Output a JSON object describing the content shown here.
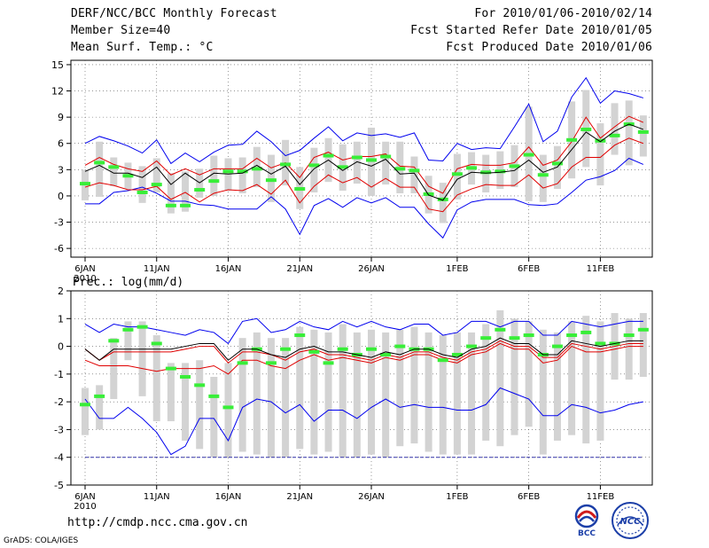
{
  "header": {
    "title": "DERF/NCC/BCC Monthly Forecast",
    "member_size": "Member Size=40",
    "variable": "Mean Surf. Temp.: °C",
    "period": "For 2010/01/06-2010/02/14",
    "started": "Fcst Started Refer Date 2010/01/05",
    "produced": "Fcst Produced Date 2010/01/06"
  },
  "footer": {
    "url": "http://cmdp.ncc.cma.gov.cn",
    "credit": "GrADS: COLA/IGES"
  },
  "logos": {
    "bcc": "BCC",
    "ncc": "NCC"
  },
  "colors": {
    "box": "#d3d3d3",
    "median": "#38ee38",
    "mean": "#000000",
    "spread": "#e00000",
    "extreme": "#0000ee"
  },
  "chart_data": [
    {
      "type": "line",
      "title": "Mean Surf. Temp.: °C",
      "x_tick_labels": [
        "6JAN",
        "11JAN",
        "16JAN",
        "21JAN",
        "26JAN",
        "1FEB",
        "6FEB",
        "11FEB"
      ],
      "x_tick_index": [
        0,
        5,
        10,
        15,
        20,
        26,
        31,
        36
      ],
      "year_label": "2010",
      "ylim": [
        -7,
        15.5
      ],
      "yticks": [
        15,
        12,
        9,
        6,
        3,
        0,
        -3,
        -6
      ],
      "grid": true,
      "series": {
        "max": [
          6,
          6.8,
          6.3,
          5.7,
          4.9,
          6.4,
          3.7,
          4.9,
          3.9,
          5,
          5.8,
          5.9,
          7.4,
          6.2,
          4.6,
          5.2,
          6.6,
          7.9,
          6.3,
          7.2,
          6.9,
          7.1,
          6.7,
          7.2,
          4.1,
          4,
          6,
          5.3,
          5.5,
          5.4,
          7.9,
          10.5,
          6.2,
          7.4,
          11.3,
          13.5,
          10.6,
          12,
          11.7,
          11.2
        ],
        "mean": [
          2.8,
          3.5,
          2.6,
          2.6,
          2.1,
          3.3,
          1.3,
          2.6,
          1.5,
          2.6,
          2.5,
          2.6,
          3.5,
          2.5,
          3.4,
          1.3,
          3.1,
          4.1,
          2.9,
          3.9,
          3.4,
          4.2,
          2.5,
          2.6,
          0.1,
          -0.5,
          1.9,
          2.7,
          2.6,
          2.7,
          2.9,
          4.1,
          2.7,
          3.3,
          5.3,
          7.3,
          6.2,
          7.4,
          8.2,
          7.6
        ],
        "sd_upper": [
          3.5,
          4.4,
          3.6,
          3.1,
          2.8,
          4,
          2.4,
          3.1,
          2.4,
          3.1,
          3.1,
          3.1,
          4.3,
          3.2,
          3.8,
          2.1,
          4.4,
          5,
          4.1,
          4.5,
          4.5,
          4.8,
          3.4,
          3.3,
          1.1,
          0.3,
          3.1,
          3.6,
          3.5,
          3.5,
          3.8,
          5.6,
          3.5,
          4.1,
          6.2,
          9,
          6.6,
          7.9,
          9.1,
          8.4
        ],
        "sd_lower": [
          1,
          1.5,
          1.2,
          0.7,
          0.7,
          1.1,
          -0.4,
          0.4,
          -0.7,
          0.3,
          0.7,
          0.6,
          1.3,
          0.2,
          1.8,
          -0.8,
          1.1,
          2.4,
          1.5,
          2.1,
          1,
          2,
          1,
          1,
          -1.5,
          -1.8,
          0.1,
          0.8,
          1.3,
          1.2,
          1.2,
          2.4,
          0.9,
          1.4,
          3.3,
          4.4,
          4.4,
          5.8,
          6.6,
          6
        ],
        "min": [
          -0.9,
          -0.9,
          0.4,
          0.6,
          1,
          0.3,
          -0.6,
          -0.6,
          -1,
          -1.1,
          -1.5,
          -1.5,
          -1.5,
          -0.1,
          -1.5,
          -4.4,
          -1.1,
          -0.3,
          -1.3,
          -0.2,
          -0.8,
          -0.2,
          -1.3,
          -1.3,
          -3.2,
          -4.8,
          -1.6,
          -0.7,
          -0.4,
          -0.4,
          -0.4,
          -1,
          -1.1,
          -0.9,
          0.4,
          1.8,
          2.2,
          2.9,
          4.3,
          3.6
        ],
        "median": [
          1.4,
          3.8,
          3.3,
          2.3,
          0.4,
          1.3,
          -1.1,
          -1.1,
          0.7,
          1.7,
          2.8,
          2.8,
          3.1,
          1.8,
          3.6,
          0.8,
          3.5,
          4.6,
          3.3,
          4.4,
          4.1,
          4.5,
          3.1,
          2.9,
          0.2,
          -0.4,
          2.5,
          3.2,
          2.7,
          2.8,
          3.4,
          4.7,
          2.4,
          3.7,
          6.4,
          7.6,
          6.3,
          6.9,
          8.2,
          7.3
        ],
        "box_top": [
          3,
          6.2,
          4.4,
          3.8,
          3.4,
          4.3,
          2.6,
          2.8,
          3.1,
          4.6,
          4.3,
          4.4,
          5.6,
          4.7,
          6.4,
          3.3,
          5.5,
          6.6,
          5.9,
          6.2,
          7.8,
          6.2,
          6.2,
          4.5,
          2.3,
          1.5,
          4.8,
          5,
          4.7,
          5.1,
          5.8,
          10.2,
          4.7,
          5.7,
          10.8,
          12.1,
          8.3,
          10.6,
          10.9,
          9.2
        ],
        "box_bot": [
          -0.5,
          -0.1,
          1.1,
          0.8,
          -0.8,
          0.4,
          -2,
          -1.8,
          -0.2,
          0,
          0.6,
          0.3,
          1,
          -0.7,
          1.2,
          -1.5,
          0.4,
          1.6,
          0.6,
          1.4,
          0,
          1.3,
          0.3,
          0.3,
          -2,
          -3.1,
          -0.4,
          1.3,
          0.4,
          0.8,
          1,
          -0.6,
          -0.7,
          0.8,
          2,
          3.3,
          1.2,
          4.7,
          3.5,
          4.5
        ]
      }
    },
    {
      "type": "line",
      "title": "Prec.: log(mm/d)",
      "x_tick_labels": [
        "6JAN",
        "11JAN",
        "16JAN",
        "21JAN",
        "26JAN",
        "1FEB",
        "6FEB",
        "11FEB"
      ],
      "x_tick_index": [
        0,
        5,
        10,
        15,
        20,
        26,
        31,
        36
      ],
      "year_label": "2010",
      "ylim": [
        -5,
        2
      ],
      "yticks": [
        2,
        1,
        0,
        -1,
        -2,
        -3,
        -4,
        -5
      ],
      "grid": true,
      "series": {
        "max": [
          0.8,
          0.5,
          0.8,
          0.7,
          0.7,
          0.6,
          0.5,
          0.4,
          0.6,
          0.5,
          0.1,
          0.9,
          1,
          0.5,
          0.6,
          0.9,
          0.7,
          0.6,
          0.9,
          0.7,
          0.9,
          0.7,
          0.6,
          0.8,
          0.8,
          0.4,
          0.5,
          0.9,
          0.9,
          0.7,
          0.9,
          0.9,
          0.4,
          0.4,
          0.9,
          0.8,
          0.7,
          0.8,
          0.9,
          0.9
        ],
        "mean": [
          -0.1,
          -0.5,
          -0.1,
          -0.1,
          -0.1,
          -0.1,
          -0.1,
          0,
          0.1,
          0.1,
          -0.5,
          -0.1,
          -0.1,
          -0.3,
          -0.4,
          -0.1,
          0,
          -0.2,
          -0.2,
          -0.3,
          -0.4,
          -0.2,
          -0.3,
          -0.1,
          -0.1,
          -0.3,
          -0.4,
          -0.1,
          0,
          0.3,
          0.1,
          0.1,
          -0.3,
          -0.3,
          0.2,
          0.1,
          0,
          0.1,
          0.2,
          0.2
        ],
        "sd_upper": [
          -0.1,
          -0.5,
          -0.2,
          -0.2,
          -0.2,
          -0.2,
          -0.2,
          -0.1,
          0,
          0,
          -0.6,
          -0.2,
          -0.2,
          -0.3,
          -0.5,
          -0.2,
          -0.1,
          -0.3,
          -0.3,
          -0.4,
          -0.5,
          -0.3,
          -0.4,
          -0.2,
          -0.2,
          -0.4,
          -0.5,
          -0.2,
          -0.1,
          0.2,
          0,
          0,
          -0.4,
          -0.4,
          0.1,
          0,
          -0.1,
          0,
          0.1,
          0.1
        ],
        "sd_lower": [
          -0.5,
          -0.7,
          -0.7,
          -0.7,
          -0.8,
          -0.9,
          -0.8,
          -0.8,
          -0.8,
          -0.7,
          -1,
          -0.5,
          -0.5,
          -0.7,
          -0.8,
          -0.5,
          -0.3,
          -0.5,
          -0.4,
          -0.5,
          -0.6,
          -0.4,
          -0.5,
          -0.3,
          -0.3,
          -0.5,
          -0.6,
          -0.3,
          -0.2,
          0.1,
          -0.1,
          -0.1,
          -0.6,
          -0.5,
          0,
          -0.2,
          -0.2,
          -0.1,
          0,
          0
        ],
        "min": [
          -1.9,
          -2.6,
          -2.6,
          -2.2,
          -2.6,
          -3.1,
          -3.9,
          -3.6,
          -2.6,
          -2.6,
          -3.4,
          -2.2,
          -1.9,
          -2,
          -2.4,
          -2.1,
          -2.7,
          -2.3,
          -2.3,
          -2.6,
          -2.2,
          -1.9,
          -2.2,
          -2.1,
          -2.2,
          -2.2,
          -2.3,
          -2.3,
          -2.1,
          -1.5,
          -1.7,
          -1.9,
          -2.5,
          -2.5,
          -2.1,
          -2.2,
          -2.4,
          -2.3,
          -2.1,
          -2
        ],
        "median": [
          -2.1,
          -1.8,
          0.2,
          0.6,
          0.7,
          0.1,
          -0.8,
          -1.1,
          -1.4,
          -1.8,
          -2.2,
          -0.6,
          -0.1,
          -0.6,
          -0.1,
          0.4,
          -0.2,
          -0.6,
          -0.1,
          -0.3,
          -0.1,
          -0.3,
          0,
          -0.1,
          -0.1,
          -0.5,
          -0.3,
          0,
          0.3,
          0.6,
          0.3,
          0.4,
          -0.3,
          0,
          0.4,
          0.5,
          0.1,
          0.1,
          0.4,
          0.6
        ],
        "box_top": [
          -1.5,
          -1.4,
          0.3,
          0.9,
          0.9,
          0.4,
          -0.6,
          -0.6,
          -0.5,
          -1.1,
          -0.6,
          0.3,
          0.5,
          0.3,
          0.3,
          0.7,
          0.6,
          0.5,
          0.8,
          0.5,
          0.6,
          0.5,
          0.6,
          0.7,
          0.5,
          0.4,
          0.5,
          0.5,
          0.8,
          1.3,
          1,
          0.9,
          0.6,
          0.5,
          0.9,
          1.1,
          0.9,
          1.2,
          1,
          1.2
        ],
        "box_bot": [
          -3.2,
          -3,
          -1.9,
          -0.5,
          -1.8,
          -2.7,
          -2.7,
          -3.4,
          -3.7,
          -4,
          -4,
          -3.8,
          -3.9,
          -4,
          -4,
          -3.7,
          -3.9,
          -3.8,
          -4,
          -4,
          -3.9,
          -4,
          -3.6,
          -3.5,
          -3.8,
          -3.9,
          -3.9,
          -3.9,
          -3.4,
          -3.6,
          -3.2,
          -2.9,
          -3.9,
          -3.4,
          -3.2,
          -3.5,
          -3.4,
          -1.2,
          -1.2,
          -1.1
        ]
      },
      "floor_line": -4
    }
  ]
}
